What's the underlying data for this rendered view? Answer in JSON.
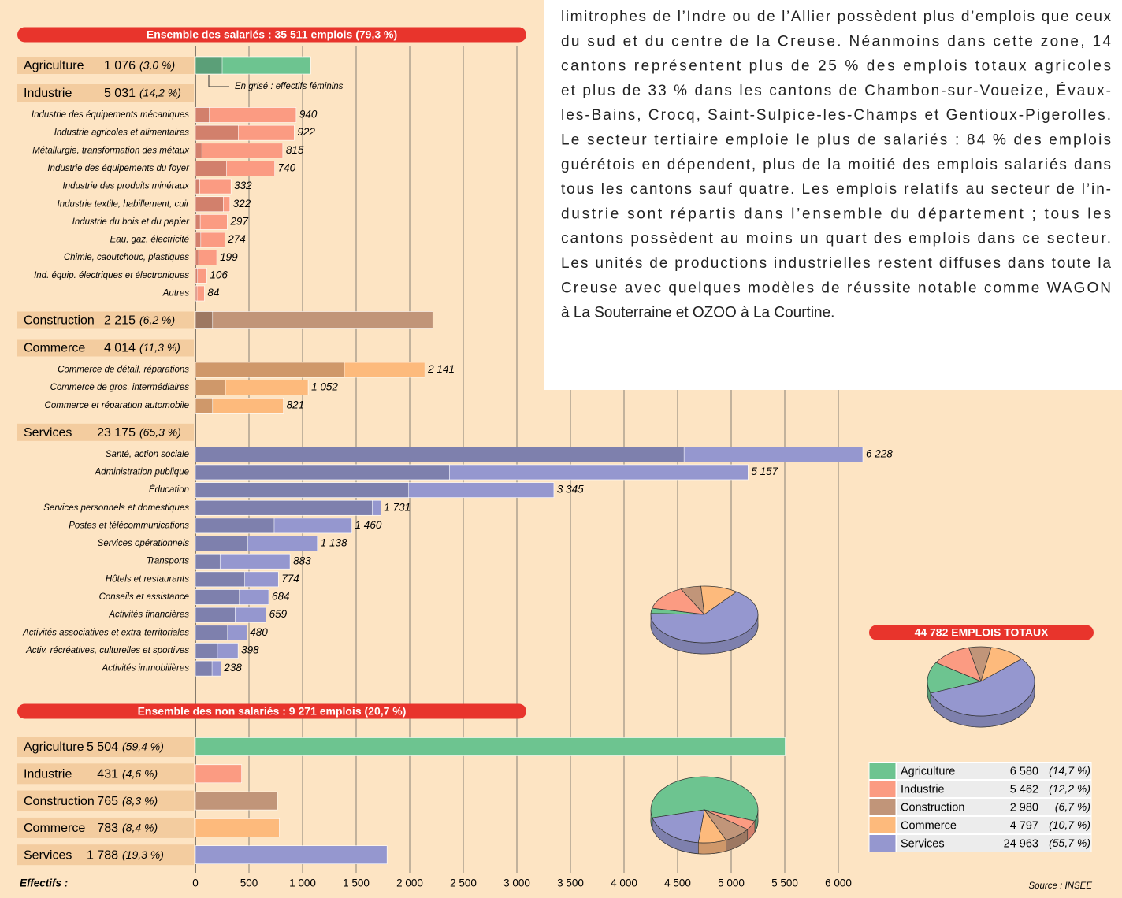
{
  "text": {
    "lines": [
      "limitrophes de l’Indre ou de l’Allier possèdent plus d’emplois que ceux",
      "du sud et du centre de la Creuse. Néanmoins dans cette zone, 14",
      "cantons représentent plus de 25 % des emplois totaux agricoles",
      "et plus de 33 % dans les cantons de Chambon-sur-Voueize, Évaux-",
      "les-Bains, Crocq, Saint-Sulpice-les-Champs et Gentioux-Pigerolles.",
      "Le secteur tertiaire emploie le plus de salariés : 84 % des emplois",
      "guérétois en dépendent, plus de la moitié des emplois salariés dans",
      "tous les cantons sauf quatre. Les emplois relatifs au secteur de l’in-",
      "dustrie sont répartis dans l’ensemble du département ; tous les",
      "cantons possèdent au moins un quart des emplois dans ce secteur.",
      "Les unités de productions industrielles restent diffuses dans toute la",
      "Creuse avec quelques modèles de réussite notable comme WAGON",
      "à La Souterraine et OZOO à La Courtine."
    ]
  },
  "chart_data": {
    "type": "bar",
    "x_label": "Effectifs :",
    "xlim": [
      0,
      6000
    ],
    "xticks": [
      0,
      500,
      {
        "value": 1000,
        "label": "1 000"
      },
      {
        "value": 1500,
        "label": "1 500"
      },
      {
        "value": 2000,
        "label": "2 000"
      },
      {
        "value": 2500,
        "label": "2 500"
      },
      {
        "value": 3000,
        "label": "3 000"
      },
      {
        "value": 3500,
        "label": "3 500"
      },
      {
        "value": 4000,
        "label": "4 000"
      },
      {
        "value": 4500,
        "label": "4 500"
      },
      {
        "value": 5000,
        "label": "5 000"
      },
      {
        "value": 5500,
        "label": "5 500"
      },
      {
        "value": 6000,
        "label": "6 000"
      }
    ],
    "grid": true,
    "note": "En grisé : effectifs féminins",
    "source": "Source : INSEE",
    "sectors": [
      {
        "name": "Agriculture",
        "color": "#6dc490",
        "female_color": "#5b9f78"
      },
      {
        "name": "Industrie",
        "color": "#fb9b82",
        "female_color": "#d2806c"
      },
      {
        "name": "Construction",
        "color": "#c19579",
        "female_color": "#9d7862"
      },
      {
        "name": "Commerce",
        "color": "#fdba7c",
        "female_color": "#cf986a"
      },
      {
        "name": "Services",
        "color": "#9597cf",
        "female_color": "#7e80ad"
      }
    ],
    "salaries": {
      "title": "Ensemble des salariés : 35 511 emplois (79,3 %)",
      "groups": [
        {
          "value": 1076,
          "value_label": "1 076",
          "share": 3.0,
          "share_label": "(3,0 %)",
          "female": 250
        },
        {
          "value": 5031,
          "value_label": "5 031",
          "share": 14.2,
          "share_label": "(14,2 %)",
          "categories": [
            "Industrie des équipements mécaniques",
            "Industrie agricoles et alimentaires",
            "Métallurgie, transformation des métaux",
            "Industrie des équipements du foyer",
            "Industrie des produits minéraux",
            "Industrie textile, habillement, cuir",
            "Industrie du bois et du papier",
            "Eau, gaz, électricité",
            "Chimie, caoutchouc, plastiques",
            "Ind. équip. électriques et électroniques",
            "Autres"
          ],
          "values": [
            940,
            922,
            815,
            740,
            332,
            322,
            297,
            274,
            199,
            106,
            84
          ],
          "value_labels": [
            "940",
            "922",
            "815",
            "740",
            "332",
            "322",
            "297",
            "274",
            "199",
            "106",
            "84"
          ],
          "female": [
            130,
            400,
            60,
            290,
            40,
            260,
            45,
            50,
            30,
            20,
            15
          ]
        },
        {
          "value": 2215,
          "value_label": "2 215",
          "share": 6.2,
          "share_label": "(6,2 %)",
          "female": 160
        },
        {
          "value": 4014,
          "value_label": "4 014",
          "share": 11.3,
          "share_label": "(11,3 %)",
          "categories": [
            "Commerce de détail, réparations",
            "Commerce de gros, intermédiaires",
            "Commerce et réparation automobile"
          ],
          "values": [
            2141,
            1052,
            821
          ],
          "value_labels": [
            "2 141",
            "1 052",
            "821"
          ],
          "female": [
            1390,
            280,
            160
          ]
        },
        {
          "value": 23175,
          "value_label": "23 175",
          "share": 65.3,
          "share_label": "(65,3 %)",
          "categories": [
            "Santé, action sociale",
            "Administration publique",
            "Éducation",
            "Services personnels et domestiques",
            "Postes et télécommunications",
            "Services opérationnels",
            "Transports",
            "Hôtels et restaurants",
            "Conseils et assistance",
            "Activités financières",
            "Activités associatives et extra-territoriales",
            "Activ. récréatives, culturelles et sportives",
            "Activités immobilières"
          ],
          "values": [
            6228,
            5157,
            3345,
            1731,
            1460,
            1138,
            883,
            774,
            684,
            659,
            480,
            398,
            238
          ],
          "value_labels": [
            "6 228",
            "5 157",
            "3 345",
            "1 731",
            "1 460",
            "1 138",
            "883",
            "774",
            "684",
            "659",
            "480",
            "398",
            "238"
          ],
          "female": [
            4560,
            2370,
            1990,
            1650,
            735,
            490,
            230,
            460,
            410,
            370,
            300,
            205,
            155
          ]
        }
      ]
    },
    "non_salaries": {
      "title": "Ensemble des non salariés : 9 271 emplois (20,7 %)",
      "groups": [
        {
          "value": 5504,
          "value_label": "5 504",
          "share": 59.4,
          "share_label": "(59,4 %)"
        },
        {
          "value": 431,
          "value_label": "431",
          "share": 4.6,
          "share_label": "(4,6 %)"
        },
        {
          "value": 765,
          "value_label": "765",
          "share": 8.3,
          "share_label": "(8,3 %)"
        },
        {
          "value": 783,
          "value_label": "783",
          "share": 8.4,
          "share_label": "(8,4 %)"
        },
        {
          "value": 1788,
          "value_label": "1 788",
          "share": 19.3,
          "share_label": "(19,3 %)"
        }
      ]
    },
    "total": {
      "title": "44 782 EMPLOIS TOTAUX",
      "values": [
        6580,
        5462,
        2980,
        4797,
        24963
      ],
      "value_labels": [
        "6 580",
        "5 462",
        "2 980",
        "4 797",
        "24 963"
      ],
      "shares": [
        14.7,
        12.2,
        6.7,
        10.7,
        55.7
      ],
      "share_labels": [
        "(14,7 %)",
        "(12,2 %)",
        "(6,7 %)",
        "(10,7 %)",
        "(55,7 %)"
      ]
    }
  }
}
